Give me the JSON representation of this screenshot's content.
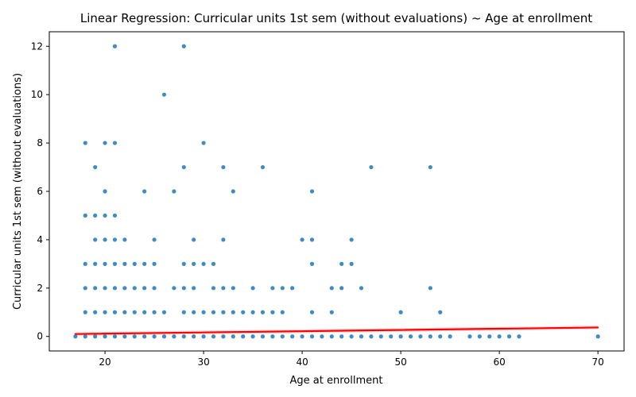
{
  "chart_data": {
    "type": "scatter",
    "title": "Linear Regression: Curricular units 1st sem (without evaluations) ~ Age at enrollment",
    "xlabel": "Age at enrollment",
    "ylabel": "Curricular units 1st sem (without evaluations)",
    "xlim": [
      14.35,
      72.65
    ],
    "ylim": [
      -0.6,
      12.6
    ],
    "xticks": [
      20,
      30,
      40,
      50,
      60,
      70
    ],
    "yticks": [
      0,
      2,
      4,
      6,
      8,
      10,
      12
    ],
    "grid": false,
    "point_color": "#1f77b4",
    "line_color": "#ff0000",
    "band_color": "#ff9c9c",
    "series": [
      {
        "type": "scatter",
        "points": [
          [
            17,
            0
          ],
          [
            18,
            0
          ],
          [
            19,
            0
          ],
          [
            20,
            0
          ],
          [
            21,
            0
          ],
          [
            22,
            0
          ],
          [
            23,
            0
          ],
          [
            24,
            0
          ],
          [
            25,
            0
          ],
          [
            26,
            0
          ],
          [
            27,
            0
          ],
          [
            28,
            0
          ],
          [
            29,
            0
          ],
          [
            30,
            0
          ],
          [
            31,
            0
          ],
          [
            32,
            0
          ],
          [
            33,
            0
          ],
          [
            34,
            0
          ],
          [
            35,
            0
          ],
          [
            36,
            0
          ],
          [
            37,
            0
          ],
          [
            38,
            0
          ],
          [
            39,
            0
          ],
          [
            40,
            0
          ],
          [
            41,
            0
          ],
          [
            42,
            0
          ],
          [
            43,
            0
          ],
          [
            44,
            0
          ],
          [
            45,
            0
          ],
          [
            46,
            0
          ],
          [
            47,
            0
          ],
          [
            48,
            0
          ],
          [
            49,
            0
          ],
          [
            50,
            0
          ],
          [
            51,
            0
          ],
          [
            52,
            0
          ],
          [
            53,
            0
          ],
          [
            54,
            0
          ],
          [
            55,
            0
          ],
          [
            57,
            0
          ],
          [
            58,
            0
          ],
          [
            59,
            0
          ],
          [
            60,
            0
          ],
          [
            61,
            0
          ],
          [
            62,
            0
          ],
          [
            70,
            0
          ],
          [
            18,
            1
          ],
          [
            19,
            1
          ],
          [
            20,
            1
          ],
          [
            21,
            1
          ],
          [
            22,
            1
          ],
          [
            23,
            1
          ],
          [
            24,
            1
          ],
          [
            25,
            1
          ],
          [
            26,
            1
          ],
          [
            28,
            1
          ],
          [
            29,
            1
          ],
          [
            30,
            1
          ],
          [
            31,
            1
          ],
          [
            32,
            1
          ],
          [
            33,
            1
          ],
          [
            34,
            1
          ],
          [
            35,
            1
          ],
          [
            36,
            1
          ],
          [
            37,
            1
          ],
          [
            38,
            1
          ],
          [
            41,
            1
          ],
          [
            43,
            1
          ],
          [
            50,
            1
          ],
          [
            54,
            1
          ],
          [
            18,
            2
          ],
          [
            19,
            2
          ],
          [
            20,
            2
          ],
          [
            21,
            2
          ],
          [
            22,
            2
          ],
          [
            23,
            2
          ],
          [
            24,
            2
          ],
          [
            25,
            2
          ],
          [
            27,
            2
          ],
          [
            28,
            2
          ],
          [
            29,
            2
          ],
          [
            31,
            2
          ],
          [
            32,
            2
          ],
          [
            33,
            2
          ],
          [
            35,
            2
          ],
          [
            37,
            2
          ],
          [
            38,
            2
          ],
          [
            39,
            2
          ],
          [
            43,
            2
          ],
          [
            44,
            2
          ],
          [
            46,
            2
          ],
          [
            53,
            2
          ],
          [
            18,
            3
          ],
          [
            19,
            3
          ],
          [
            20,
            3
          ],
          [
            21,
            3
          ],
          [
            22,
            3
          ],
          [
            23,
            3
          ],
          [
            24,
            3
          ],
          [
            25,
            3
          ],
          [
            28,
            3
          ],
          [
            29,
            3
          ],
          [
            30,
            3
          ],
          [
            31,
            3
          ],
          [
            41,
            3
          ],
          [
            44,
            3
          ],
          [
            45,
            3
          ],
          [
            19,
            4
          ],
          [
            20,
            4
          ],
          [
            21,
            4
          ],
          [
            22,
            4
          ],
          [
            25,
            4
          ],
          [
            29,
            4
          ],
          [
            32,
            4
          ],
          [
            40,
            4
          ],
          [
            41,
            4
          ],
          [
            45,
            4
          ],
          [
            18,
            5
          ],
          [
            19,
            5
          ],
          [
            20,
            5
          ],
          [
            21,
            5
          ],
          [
            20,
            6
          ],
          [
            24,
            6
          ],
          [
            27,
            6
          ],
          [
            33,
            6
          ],
          [
            41,
            6
          ],
          [
            19,
            7
          ],
          [
            28,
            7
          ],
          [
            32,
            7
          ],
          [
            36,
            7
          ],
          [
            47,
            7
          ],
          [
            53,
            7
          ],
          [
            18,
            8
          ],
          [
            20,
            8
          ],
          [
            21,
            8
          ],
          [
            30,
            8
          ],
          [
            26,
            10
          ],
          [
            21,
            12
          ],
          [
            28,
            12
          ]
        ]
      },
      {
        "type": "line",
        "name": "",
        "points": [
          [
            17,
            0.1
          ],
          [
            70,
            0.37
          ]
        ]
      }
    ]
  }
}
